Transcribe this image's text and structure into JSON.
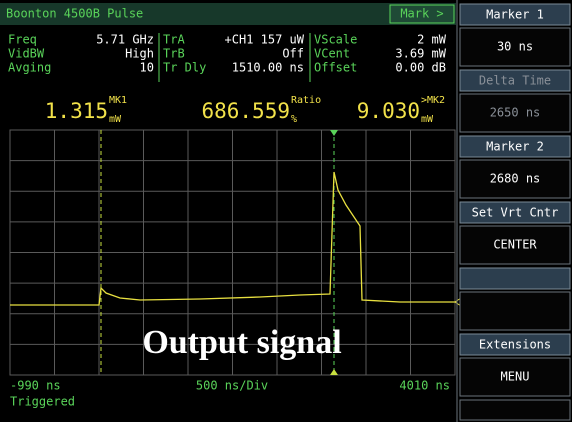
{
  "header": {
    "title": "Boonton 4500B Pulse",
    "button": "Mark >"
  },
  "readings": [
    [
      {
        "label": "Freq",
        "value": "5.71 GHz"
      },
      {
        "label": "VidBW",
        "value": "High"
      },
      {
        "label": "Avging",
        "value": "10"
      }
    ],
    [
      {
        "label": "TrA",
        "value": "+CH1 157 uW"
      },
      {
        "label": "TrB",
        "value": "Off"
      },
      {
        "label": "Tr Dly",
        "value": "1510.00 ns"
      }
    ],
    [
      {
        "label": "VScale",
        "value": "2 mW"
      },
      {
        "label": "VCent",
        "value": "3.69 mW"
      },
      {
        "label": "Offset",
        "value": "0.00 dB"
      }
    ]
  ],
  "measurements": [
    {
      "value": "1.315",
      "tag": "MK1",
      "unit": "mW"
    },
    {
      "value": "686.559",
      "tag": "Ratio",
      "unit": "%"
    },
    {
      "value": "9.030",
      "tag": ">MK2",
      "unit": "mW"
    }
  ],
  "overlay": "Output signal",
  "axis": {
    "start": "-990 ns",
    "scale": "500 ns/Div",
    "end": "4010 ns"
  },
  "status": "Triggered",
  "menu": [
    {
      "title": "Marker 1",
      "value": "30 ns"
    },
    {
      "title": "Delta Time",
      "value": "2650 ns"
    },
    {
      "title": "Marker 2",
      "value": "2680 ns"
    },
    {
      "title": "Set Vrt Cntr",
      "value": "CENTER"
    },
    {
      "title": "Extensions",
      "value": "MENU"
    }
  ]
}
